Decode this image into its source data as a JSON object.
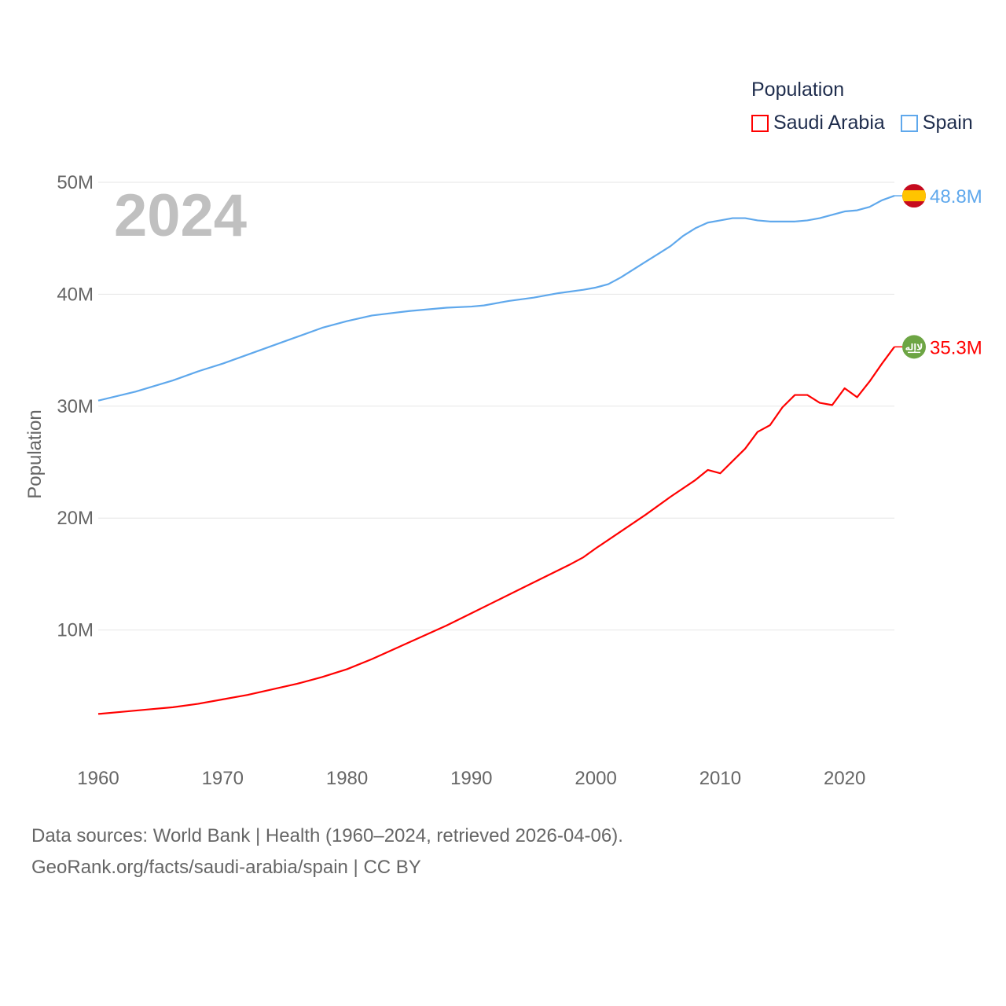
{
  "chart_data": {
    "type": "line",
    "title": "Population",
    "year_label": "2024",
    "ylabel": "Population",
    "xlabel": "",
    "xlim": [
      1960,
      2024
    ],
    "ylim": [
      0,
      50000000
    ],
    "x_ticks": [
      "1960",
      "1970",
      "1980",
      "1990",
      "2000",
      "2010",
      "2020"
    ],
    "y_ticks": [
      {
        "v": 10000000,
        "label": "10M"
      },
      {
        "v": 20000000,
        "label": "20M"
      },
      {
        "v": 30000000,
        "label": "30M"
      },
      {
        "v": 40000000,
        "label": "40M"
      },
      {
        "v": 50000000,
        "label": "50M"
      }
    ],
    "grid": true,
    "legend_position": "top-right",
    "series": [
      {
        "name": "Saudi Arabia",
        "color": "#ff0000",
        "end_label": "35.3M",
        "flag": "saudi-arabia-flag",
        "points": [
          [
            1960,
            2.5
          ],
          [
            1962,
            2.7
          ],
          [
            1964,
            2.9
          ],
          [
            1966,
            3.1
          ],
          [
            1968,
            3.4
          ],
          [
            1970,
            3.8
          ],
          [
            1972,
            4.2
          ],
          [
            1974,
            4.7
          ],
          [
            1976,
            5.2
          ],
          [
            1978,
            5.8
          ],
          [
            1980,
            6.5
          ],
          [
            1982,
            7.4
          ],
          [
            1984,
            8.4
          ],
          [
            1986,
            9.4
          ],
          [
            1988,
            10.4
          ],
          [
            1990,
            11.5
          ],
          [
            1992,
            12.6
          ],
          [
            1994,
            13.7
          ],
          [
            1996,
            14.8
          ],
          [
            1998,
            15.9
          ],
          [
            1999,
            16.5
          ],
          [
            2000,
            17.3
          ],
          [
            2002,
            18.8
          ],
          [
            2004,
            20.3
          ],
          [
            2006,
            21.9
          ],
          [
            2008,
            23.4
          ],
          [
            2009,
            24.3
          ],
          [
            2010,
            24.0
          ],
          [
            2011,
            25.1
          ],
          [
            2012,
            26.2
          ],
          [
            2013,
            27.7
          ],
          [
            2014,
            28.3
          ],
          [
            2015,
            29.9
          ],
          [
            2016,
            31.0
          ],
          [
            2017,
            31.0
          ],
          [
            2018,
            30.3
          ],
          [
            2019,
            30.1
          ],
          [
            2020,
            31.6
          ],
          [
            2021,
            30.8
          ],
          [
            2022,
            32.2
          ],
          [
            2023,
            33.8
          ],
          [
            2024,
            35.3
          ]
        ]
      },
      {
        "name": "Spain",
        "color": "#5fa8ec",
        "end_label": "48.8M",
        "flag": "spain-flag",
        "points": [
          [
            1960,
            30.5
          ],
          [
            1963,
            31.3
          ],
          [
            1966,
            32.3
          ],
          [
            1968,
            33.1
          ],
          [
            1970,
            33.8
          ],
          [
            1972,
            34.6
          ],
          [
            1975,
            35.8
          ],
          [
            1978,
            37.0
          ],
          [
            1980,
            37.6
          ],
          [
            1982,
            38.1
          ],
          [
            1985,
            38.5
          ],
          [
            1988,
            38.8
          ],
          [
            1990,
            38.9
          ],
          [
            1991,
            39.0
          ],
          [
            1993,
            39.4
          ],
          [
            1995,
            39.7
          ],
          [
            1997,
            40.1
          ],
          [
            1999,
            40.4
          ],
          [
            2000,
            40.6
          ],
          [
            2001,
            40.9
          ],
          [
            2002,
            41.5
          ],
          [
            2003,
            42.2
          ],
          [
            2004,
            42.9
          ],
          [
            2005,
            43.6
          ],
          [
            2006,
            44.3
          ],
          [
            2007,
            45.2
          ],
          [
            2008,
            45.9
          ],
          [
            2009,
            46.4
          ],
          [
            2010,
            46.6
          ],
          [
            2011,
            46.8
          ],
          [
            2012,
            46.8
          ],
          [
            2013,
            46.6
          ],
          [
            2014,
            46.5
          ],
          [
            2015,
            46.5
          ],
          [
            2016,
            46.5
          ],
          [
            2017,
            46.6
          ],
          [
            2018,
            46.8
          ],
          [
            2019,
            47.1
          ],
          [
            2020,
            47.4
          ],
          [
            2021,
            47.5
          ],
          [
            2022,
            47.8
          ],
          [
            2023,
            48.4
          ],
          [
            2024,
            48.8
          ]
        ]
      }
    ]
  },
  "footer": {
    "line1": "Data sources: World Bank | Health (1960–2024, retrieved 2026-04-06).",
    "line2": "GeoRank.org/facts/saudi-arabia/spain | CC BY"
  }
}
